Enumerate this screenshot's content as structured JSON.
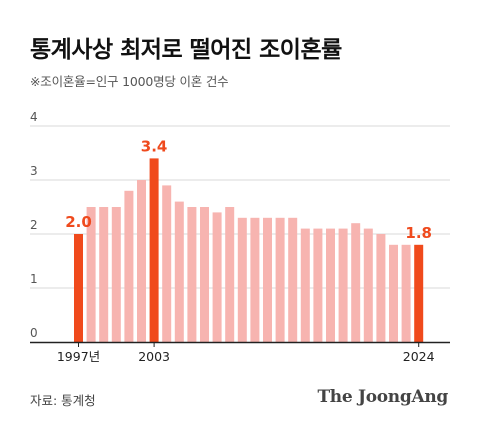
{
  "title": "통계사상 최저로 떨어진 조이혼률",
  "subtitle": "※조이혼율=인구 1000명당 이혼 건수",
  "source": "자료: 통계청",
  "brand": "The JoongAng",
  "colors": {
    "bar": "#f7b4b0",
    "highlight": "#f04a1c",
    "highlight_label": "#ef4a1d",
    "grid": "#d9d9d9",
    "axis": "#222222",
    "tick": "#555555"
  },
  "chart_data": {
    "type": "bar",
    "years": [
      1997,
      1998,
      1999,
      2000,
      2001,
      2002,
      2003,
      2004,
      2005,
      2006,
      2007,
      2008,
      2009,
      2010,
      2011,
      2012,
      2013,
      2014,
      2015,
      2016,
      2017,
      2018,
      2019,
      2020,
      2021,
      2022,
      2023,
      2024
    ],
    "values": [
      2.0,
      2.5,
      2.5,
      2.5,
      2.8,
      3.0,
      3.4,
      2.9,
      2.6,
      2.5,
      2.5,
      2.4,
      2.5,
      2.3,
      2.3,
      2.3,
      2.3,
      2.3,
      2.1,
      2.1,
      2.1,
      2.1,
      2.2,
      2.1,
      2.0,
      1.8,
      1.8,
      1.8
    ],
    "x_tick_labels": [
      {
        "year": 1997,
        "label": "1997년"
      },
      {
        "year": 2003,
        "label": "2003"
      },
      {
        "year": 2024,
        "label": "2024"
      }
    ],
    "highlights": [
      {
        "year": 1997,
        "label": "2.0"
      },
      {
        "year": 2003,
        "label": "3.4"
      },
      {
        "year": 2024,
        "label": "1.8"
      }
    ],
    "y_ticks": [
      "0",
      "1",
      "2",
      "3",
      "4"
    ],
    "ylim": [
      0,
      4
    ],
    "grid": true,
    "xlabel": "",
    "ylabel": ""
  }
}
